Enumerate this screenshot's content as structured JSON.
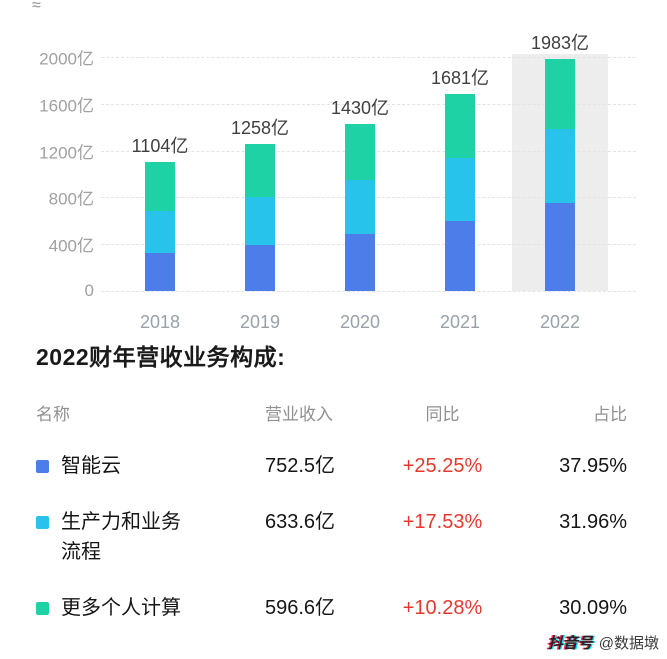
{
  "decoration_topleft": "≈",
  "chart_data": {
    "type": "bar",
    "stacked": true,
    "categories": [
      "2018",
      "2019",
      "2020",
      "2021",
      "2022"
    ],
    "series": [
      {
        "name": "智能云",
        "color": "#4d7de8",
        "values": [
          322,
          390,
          484,
          601,
          752.5
        ]
      },
      {
        "name": "生产力和业务流程",
        "color": "#27c3ea",
        "values": [
          359,
          412,
          464,
          539,
          633.6
        ]
      },
      {
        "name": "更多个人计算",
        "color": "#1fd2a6",
        "values": [
          423,
          456,
          482,
          541,
          596.6
        ]
      }
    ],
    "totals_labels": [
      "1104亿",
      "1258亿",
      "1430亿",
      "1681亿",
      "1983亿"
    ],
    "y_ticks": [
      "0",
      "400亿",
      "800亿",
      "1200亿",
      "1600亿",
      "2000亿"
    ],
    "y_tick_values": [
      0,
      400,
      800,
      1200,
      1600,
      2000
    ],
    "ylim": [
      0,
      2000
    ],
    "highlighted_category": "2022",
    "grid": "dashed-horizontal",
    "legend_position": "none"
  },
  "table": {
    "title": "2022财年营收业务构成:",
    "headers": [
      "名称",
      "营业收入",
      "同比",
      "占比"
    ],
    "yoy_color": "#e6392c",
    "rows": [
      {
        "name": "智能云",
        "color": "#4d7de8",
        "revenue": "752.5亿",
        "yoy": "+25.25%",
        "share": "37.95%"
      },
      {
        "name": "生产力和业务流程",
        "color": "#27c3ea",
        "revenue": "633.6亿",
        "yoy": "+17.53%",
        "share": "31.96%"
      },
      {
        "name": "更多个人计算",
        "color": "#1fd2a6",
        "revenue": "596.6亿",
        "yoy": "+10.28%",
        "share": "30.09%"
      }
    ]
  },
  "watermark": {
    "prefix": "抖音号",
    "handle": "@数据墩"
  }
}
